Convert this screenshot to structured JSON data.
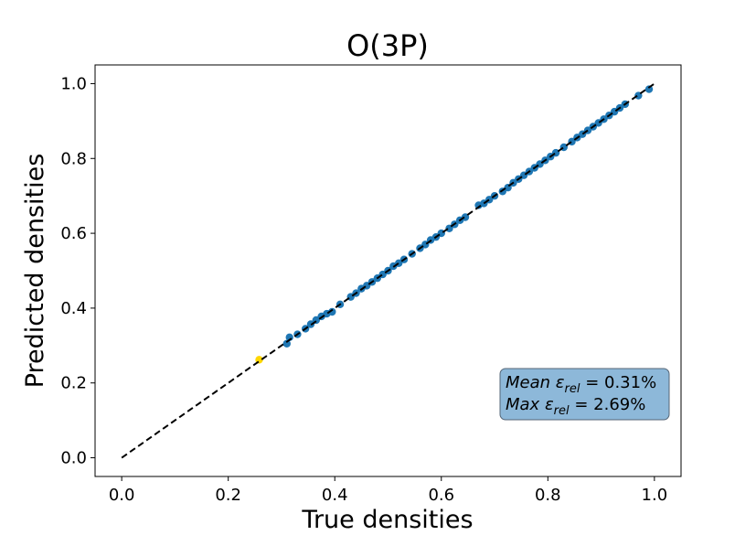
{
  "chart_data": {
    "type": "scatter",
    "title": "O(3P)",
    "xlabel": "True densities",
    "ylabel": "Predicted densities",
    "xlim": [
      -0.05,
      1.05
    ],
    "ylim": [
      -0.05,
      1.05
    ],
    "xticks": [
      0.0,
      0.2,
      0.4,
      0.6,
      0.8,
      1.0
    ],
    "yticks": [
      0.0,
      0.2,
      0.4,
      0.6,
      0.8,
      1.0
    ],
    "xtick_labels": [
      "0.0",
      "0.2",
      "0.4",
      "0.6",
      "0.8",
      "1.0"
    ],
    "ytick_labels": [
      "0.0",
      "0.2",
      "0.4",
      "0.6",
      "0.8",
      "1.0"
    ],
    "grid": false,
    "reference_line": {
      "x": [
        0.0,
        1.0
      ],
      "y": [
        0.0,
        1.0
      ],
      "style": "dashed",
      "color": "#000000"
    },
    "series": [
      {
        "color": "#1f77b4",
        "points": [
          [
            0.31,
            0.305
          ],
          [
            0.315,
            0.322
          ],
          [
            0.33,
            0.33
          ],
          [
            0.345,
            0.345
          ],
          [
            0.355,
            0.357
          ],
          [
            0.365,
            0.368
          ],
          [
            0.375,
            0.378
          ],
          [
            0.385,
            0.385
          ],
          [
            0.395,
            0.39
          ],
          [
            0.41,
            0.41
          ],
          [
            0.43,
            0.43
          ],
          [
            0.44,
            0.44
          ],
          [
            0.45,
            0.452
          ],
          [
            0.46,
            0.46
          ],
          [
            0.47,
            0.47
          ],
          [
            0.48,
            0.48
          ],
          [
            0.49,
            0.49
          ],
          [
            0.5,
            0.5
          ],
          [
            0.51,
            0.512
          ],
          [
            0.52,
            0.52
          ],
          [
            0.53,
            0.53
          ],
          [
            0.545,
            0.545
          ],
          [
            0.56,
            0.56
          ],
          [
            0.57,
            0.57
          ],
          [
            0.58,
            0.582
          ],
          [
            0.59,
            0.59
          ],
          [
            0.6,
            0.6
          ],
          [
            0.615,
            0.613
          ],
          [
            0.625,
            0.624
          ],
          [
            0.635,
            0.635
          ],
          [
            0.645,
            0.643
          ],
          [
            0.67,
            0.675
          ],
          [
            0.68,
            0.68
          ],
          [
            0.69,
            0.69
          ],
          [
            0.7,
            0.7
          ],
          [
            0.715,
            0.712
          ],
          [
            0.725,
            0.722
          ],
          [
            0.735,
            0.735
          ],
          [
            0.745,
            0.745
          ],
          [
            0.755,
            0.755
          ],
          [
            0.765,
            0.765
          ],
          [
            0.775,
            0.775
          ],
          [
            0.785,
            0.785
          ],
          [
            0.795,
            0.795
          ],
          [
            0.805,
            0.805
          ],
          [
            0.815,
            0.815
          ],
          [
            0.83,
            0.83
          ],
          [
            0.845,
            0.845
          ],
          [
            0.855,
            0.856
          ],
          [
            0.865,
            0.865
          ],
          [
            0.875,
            0.875
          ],
          [
            0.885,
            0.885
          ],
          [
            0.895,
            0.895
          ],
          [
            0.905,
            0.905
          ],
          [
            0.915,
            0.915
          ],
          [
            0.925,
            0.925
          ],
          [
            0.935,
            0.935
          ],
          [
            0.945,
            0.945
          ],
          [
            0.97,
            0.968
          ],
          [
            0.99,
            0.985
          ]
        ]
      },
      {
        "color": "#ffd700",
        "points": [
          [
            0.258,
            0.262
          ]
        ]
      }
    ]
  },
  "stats_box": {
    "mean_prefix": "Mean ",
    "max_prefix": "Max ",
    "symbol": "ε",
    "subscript": "rel",
    "equals": " = ",
    "mean_value": "0.31%",
    "max_value": "2.69%",
    "background": "#8db8d9",
    "border": "#556677"
  }
}
